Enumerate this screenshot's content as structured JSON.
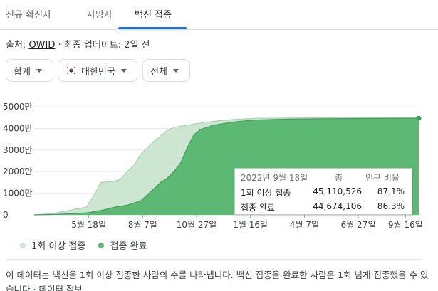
{
  "tabs": [
    {
      "label": "신규 확진자"
    },
    {
      "label": "사망자"
    },
    {
      "label": "백신 접종"
    }
  ],
  "source": {
    "prefix": "출처: ",
    "link": "OWID",
    "suffix": " · 최종 업데이트: 2일 전"
  },
  "filters": {
    "measure": "합계",
    "region": "대한민국",
    "region_flag": "south-korea-flag-icon",
    "range": "전체"
  },
  "colors": {
    "first_dose": "#cde6d2",
    "first_dose_line": "#a8d5b0",
    "completed": "#5bb974",
    "completed_line": "#34a853",
    "accent": "#1a73e8"
  },
  "chart_data": {
    "type": "area",
    "y_ticks": [
      "0",
      "1000만",
      "2000만",
      "3000만",
      "4000만",
      "5000만"
    ],
    "ylim": [
      0,
      50000000
    ],
    "x_ticks": [
      "5월 18일",
      "8월 7일",
      "10월 27일",
      "1월 16일",
      "4월 7일",
      "6월 27일",
      "9월 16일"
    ],
    "x_tick_days": [
      82,
      163,
      244,
      325,
      406,
      487,
      558
    ],
    "xlim_days": [
      0,
      578
    ],
    "series": [
      {
        "name": "1회 이상 접종",
        "points": [
          [
            0,
            0
          ],
          [
            30,
            700000
          ],
          [
            60,
            2500000
          ],
          [
            78,
            3500000
          ],
          [
            90,
            9000000
          ],
          [
            100,
            15000000
          ],
          [
            120,
            15500000
          ],
          [
            130,
            16500000
          ],
          [
            140,
            20000000
          ],
          [
            150,
            23000000
          ],
          [
            160,
            28000000
          ],
          [
            180,
            34000000
          ],
          [
            200,
            39000000
          ],
          [
            210,
            40500000
          ],
          [
            230,
            41500000
          ],
          [
            250,
            42500000
          ],
          [
            270,
            43300000
          ],
          [
            300,
            44100000
          ],
          [
            330,
            44600000
          ],
          [
            380,
            44800000
          ],
          [
            450,
            44950000
          ],
          [
            500,
            45050000
          ],
          [
            578,
            45110526
          ]
        ]
      },
      {
        "name": "접종 완료",
        "points": [
          [
            0,
            0
          ],
          [
            30,
            200000
          ],
          [
            60,
            600000
          ],
          [
            80,
            1000000
          ],
          [
            100,
            2000000
          ],
          [
            120,
            3500000
          ],
          [
            140,
            4500000
          ],
          [
            160,
            6500000
          ],
          [
            180,
            12000000
          ],
          [
            190,
            15000000
          ],
          [
            200,
            17000000
          ],
          [
            210,
            20000000
          ],
          [
            220,
            24000000
          ],
          [
            230,
            31000000
          ],
          [
            240,
            37000000
          ],
          [
            250,
            39500000
          ],
          [
            270,
            41500000
          ],
          [
            300,
            43000000
          ],
          [
            330,
            43800000
          ],
          [
            380,
            44300000
          ],
          [
            450,
            44500000
          ],
          [
            520,
            44620000
          ],
          [
            578,
            44674106
          ]
        ]
      }
    ],
    "legend_position": "bottom-left"
  },
  "tooltip": {
    "date": "2022년 9월 18일",
    "col_total": "총",
    "col_pct": "인구 비율",
    "rows": [
      {
        "label": "1회 이상 접종",
        "total": "45,110,526",
        "pct": "87.1%"
      },
      {
        "label": "접종 완료",
        "total": "44,674,106",
        "pct": "86.3%"
      }
    ]
  },
  "description": {
    "text": "이 데이터는 백신을 1회 이상 접종한 사람의 수를 나타냅니다. 백신 접종을 완료한 사람은 1회 넘게 접종했을 수 있습니다",
    "link": "데이터 정보"
  }
}
